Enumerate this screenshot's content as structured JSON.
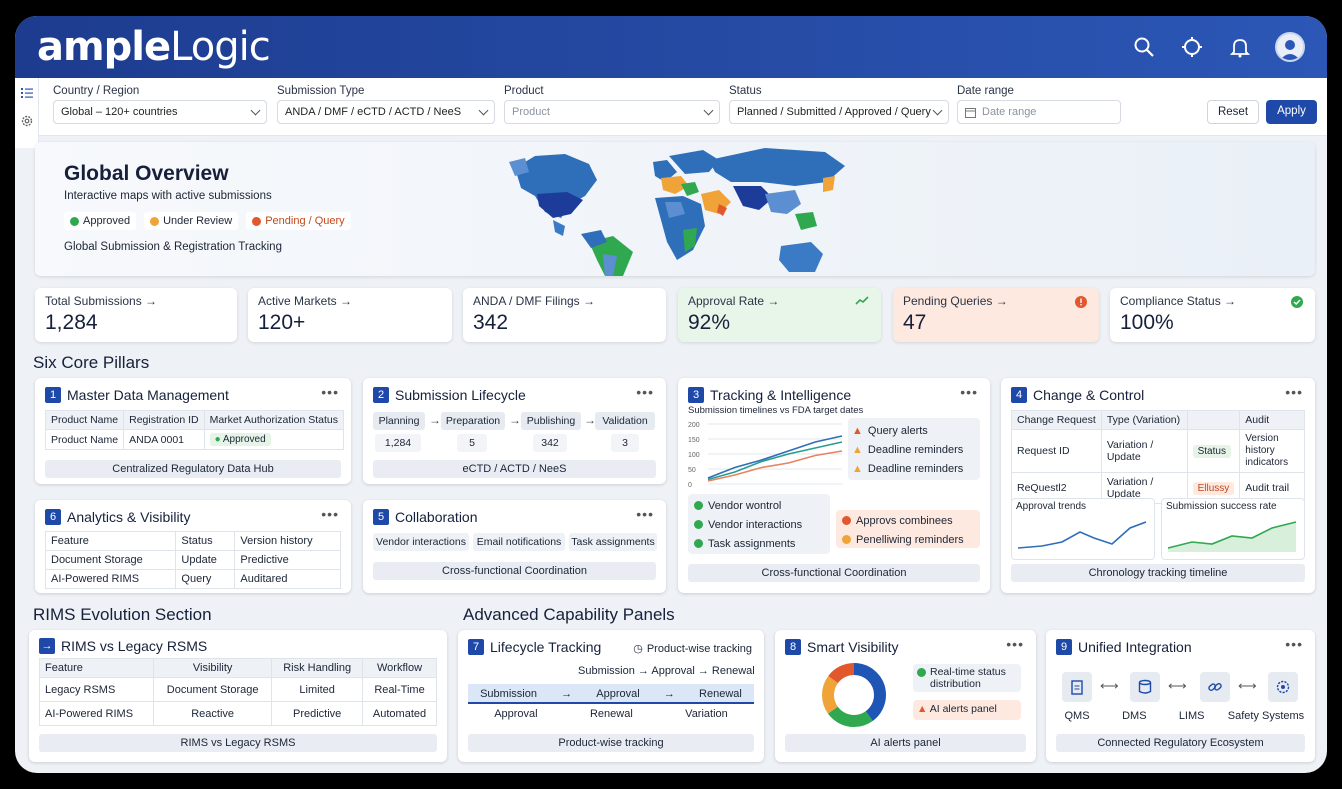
{
  "app": {
    "logo_part1": "ample",
    "logo_part2": "Logic"
  },
  "topbar": {
    "icons": [
      "search-icon",
      "target-icon",
      "bell-icon",
      "user-avatar-icon"
    ]
  },
  "filters": [
    {
      "label": "Country / Region",
      "value": "Global – 120+ countries"
    },
    {
      "label": "Submission Type",
      "value": "ANDA / DMF / eCTD / ACTD / NeeS"
    },
    {
      "label": "Product",
      "value": "Product"
    },
    {
      "label": "Status",
      "value": "Planned / Submitted / Approved / Query"
    },
    {
      "label": "Date range",
      "value": "Date range"
    }
  ],
  "buttons": {
    "reset": "Reset",
    "apply": "Apply"
  },
  "hero": {
    "title": "Global Overview",
    "subtitle": "Interactive maps with active submissions",
    "legend": [
      "Approved",
      "Under Review",
      "Pending / Query"
    ],
    "tracking": "Global Submission & Registration Tracking"
  },
  "colors": {
    "approved": "#2fa84f",
    "review": "#f0a338",
    "pending": "#e2572c",
    "primary": "#1f49a8"
  },
  "kpis": [
    {
      "label": "Total Submissions →",
      "value": "1,284"
    },
    {
      "label": "Active Markets →",
      "value": "120+"
    },
    {
      "label": "ANDA / DMF Filings →",
      "value": "342"
    },
    {
      "label": "Approval Rate →",
      "value": "92%"
    },
    {
      "label": "Pending Queries →",
      "value": "47"
    },
    {
      "label": "Compliance Status →",
      "value": "100%"
    }
  ],
  "sections": {
    "pillars": "Six Core Pillars",
    "rims": "RIMS Evolution Section",
    "advanced": "Advanced Capability Panels"
  },
  "p1": {
    "num": "1",
    "title": "Master Data Management",
    "headers": [
      "Product Name",
      "Registration ID",
      "Market Authorization Status"
    ],
    "row": [
      "Product Name",
      "ANDA 0001",
      "Approved"
    ],
    "footer": "Centralized Regulatory Data Hub"
  },
  "p2": {
    "num": "2",
    "title": "Submission Lifecycle",
    "stages": [
      "Planning",
      "Preparation",
      "Publishing",
      "Validation"
    ],
    "counts": [
      "1,284",
      "5",
      "342",
      "3"
    ],
    "footer": "eCTD / ACTD / NeeS"
  },
  "p3": {
    "num": "3",
    "title": "Tracking & Intelligence",
    "chart_caption": "Submission timelines vs FDA target dates",
    "alerts": [
      "Query alerts",
      "Deadline reminders",
      "Deadline reminders"
    ],
    "vendor": [
      "Vendor wontrol",
      "Vendor interactions",
      "Task assignments"
    ],
    "status": [
      "Approvs combinees",
      "Penelliwing reminders"
    ],
    "footer": "Cross-functional Coordination"
  },
  "p4": {
    "num": "4",
    "title": "Change & Control",
    "headers": [
      "Change Request",
      "Type (Variation)",
      "",
      "Audit"
    ],
    "rows": [
      [
        "Request ID",
        "Variation / Update",
        "Status",
        "Version history indicators"
      ],
      [
        "ReQuestl2",
        "Variation / Update",
        "Ellussy",
        "Audit trail"
      ]
    ],
    "mini1": "Approval trends",
    "mini2": "Submission success rate",
    "footer": "Chronology tracking timeline"
  },
  "p6": {
    "num": "6",
    "title": "Analytics & Visibility",
    "headers": [
      "Feature",
      "Status",
      "Version history"
    ],
    "rows": [
      [
        "Document Storage",
        "Update",
        "Predictive"
      ],
      [
        "AI-Powered RIMS",
        "Query",
        "Auditared"
      ]
    ]
  },
  "p5": {
    "num": "5",
    "title": "Collaboration",
    "tags": [
      "Vendor interactions",
      "Email notifications",
      "Task assignments"
    ],
    "footer": "Cross-functional Coordination"
  },
  "rims": {
    "title": "RIMS vs Legacy RSMS",
    "headers": [
      "Feature",
      "Visibility",
      "Risk Handling",
      "Workflow"
    ],
    "rows": [
      [
        "Legacy RSMS",
        "Document Storage",
        "Limited",
        "Real-Time"
      ],
      [
        "AI-Powered RIMS",
        "Reactive",
        "Predictive",
        "Automated"
      ]
    ],
    "footer": "RIMS vs Legacy RSMS"
  },
  "p7": {
    "num": "7",
    "title": "Lifecycle Tracking",
    "side": "Product-wise tracking",
    "flow": "Submission → Approval → Renewal",
    "row1": [
      "Submission",
      "→",
      "Approval",
      "→",
      "Renewal"
    ],
    "row2": [
      "Approval",
      "Renewal",
      "Variation"
    ],
    "footer": "Product-wise tracking"
  },
  "p8": {
    "num": "8",
    "title": "Smart Visibility",
    "items": [
      "Real-time status distribution",
      "AI alerts panel"
    ],
    "footer": "AI alerts panel"
  },
  "p9": {
    "num": "9",
    "title": "Unified Integration",
    "systems": [
      "QMS",
      "DMS",
      "LIMS",
      "Safety Systems"
    ],
    "footer": "Connected Regulatory Ecosystem"
  },
  "chart_data": [
    {
      "type": "line",
      "title": "Submission timelines vs FDA target dates",
      "ylim": [
        0,
        200
      ],
      "ticks": [
        "200",
        "150",
        "100",
        "50",
        "0"
      ],
      "series": [
        {
          "values": [
            20,
            55,
            80,
            110,
            140,
            160
          ]
        },
        {
          "values": [
            15,
            40,
            75,
            100,
            120,
            140
          ]
        },
        {
          "values": [
            10,
            30,
            55,
            70,
            95,
            110
          ]
        }
      ]
    },
    {
      "type": "pie",
      "title": "Smart Visibility",
      "values": [
        40,
        25,
        20,
        15
      ],
      "colors": [
        "#1f55b5",
        "#2fa84f",
        "#f0a338",
        "#e2572c"
      ]
    }
  ]
}
